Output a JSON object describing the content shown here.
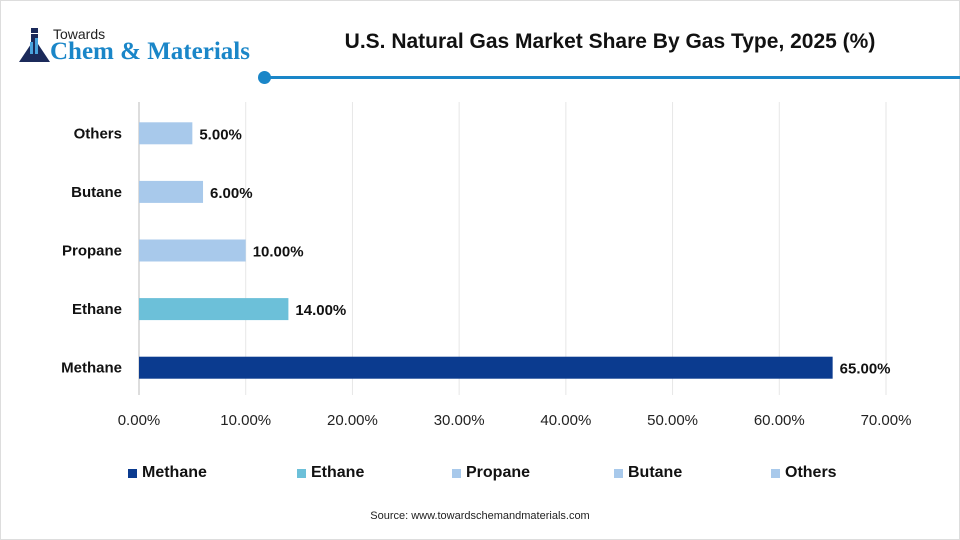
{
  "logo": {
    "line1": "Towards",
    "line2": "Chem & Materials"
  },
  "chart_data": {
    "type": "bar",
    "orientation": "horizontal",
    "title": "U.S. Natural Gas Market Share By Gas Type, 2025 (%)",
    "categories": [
      "Methane",
      "Ethane",
      "Propane",
      "Butane",
      "Others"
    ],
    "values": [
      65,
      14,
      10,
      6,
      5
    ],
    "value_labels": [
      "65.00%",
      "14.00%",
      "10.00%",
      "6.00%",
      "5.00%"
    ],
    "colors": [
      "#0b3b8f",
      "#6cc0d9",
      "#a8c9eb",
      "#a8c9eb",
      "#a8c9eb"
    ],
    "xlim": [
      0,
      70
    ],
    "xticks": [
      "0.00%",
      "10.00%",
      "20.00%",
      "30.00%",
      "40.00%",
      "50.00%",
      "60.00%",
      "70.00%"
    ],
    "grid": true,
    "legend": "bottom"
  },
  "source": "Source: www.towardschemandmaterials.com"
}
